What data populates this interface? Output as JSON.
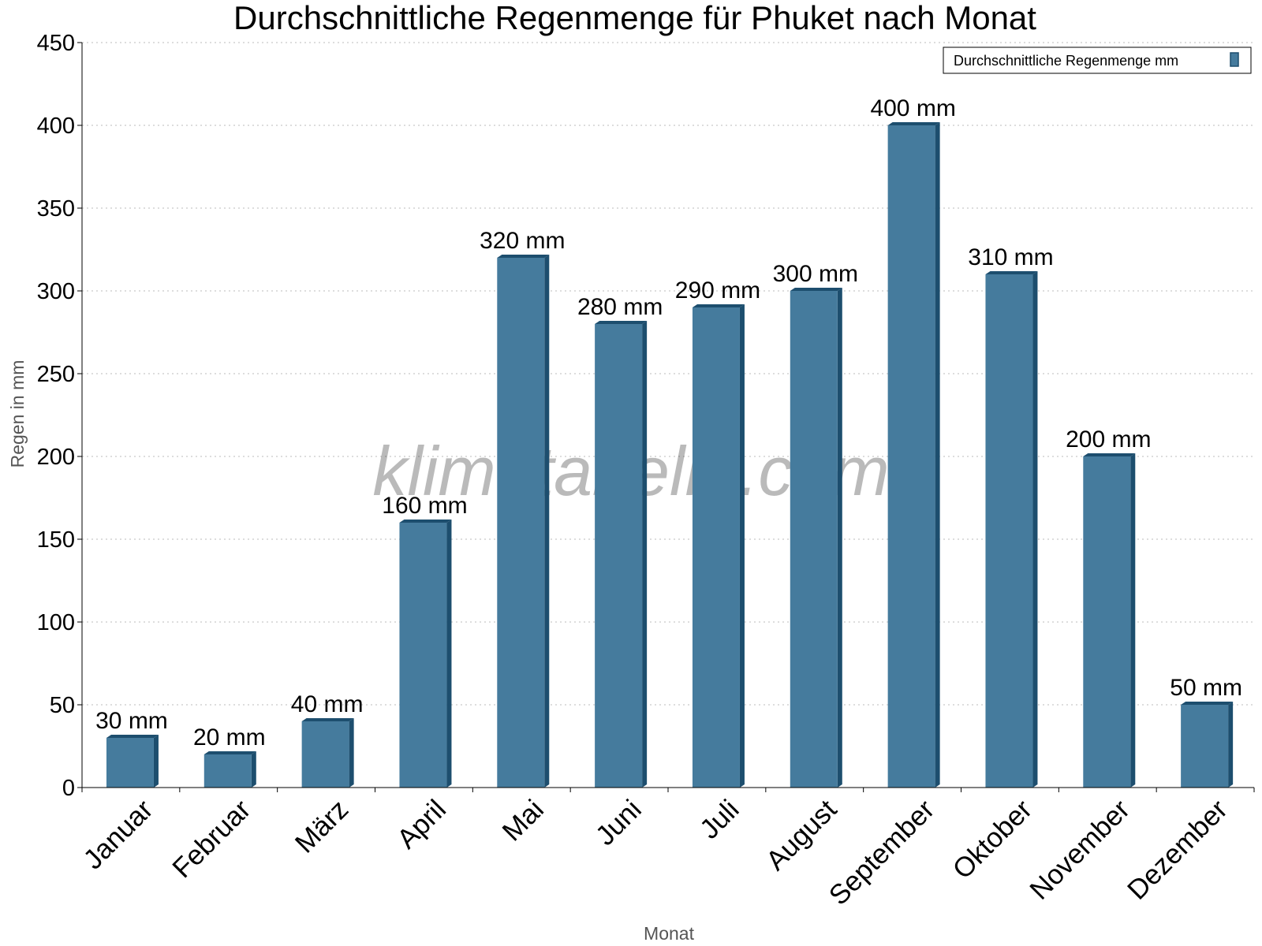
{
  "watermark": "klimatabelle.com",
  "chart_data": {
    "type": "bar",
    "title": "Durchschnittliche Regenmenge für Phuket nach Monat",
    "xlabel": "Monat",
    "ylabel": "Regen in mm",
    "ylim": [
      0,
      450
    ],
    "yticks": [
      0,
      50,
      100,
      150,
      200,
      250,
      300,
      350,
      400,
      450
    ],
    "grid": true,
    "legend_position": "top-right",
    "bar_color": "#457b9d",
    "bar_side_color": "#1d4e6e",
    "categories": [
      "Januar",
      "Februar",
      "März",
      "April",
      "Mai",
      "Juni",
      "Juli",
      "August",
      "September",
      "Oktober",
      "November",
      "Dezember"
    ],
    "series": [
      {
        "name": "Durchschnittliche Regenmenge mm",
        "values": [
          30,
          20,
          40,
          160,
          320,
          280,
          290,
          300,
          400,
          310,
          200,
          50
        ],
        "labels": [
          "30 mm",
          "20 mm",
          "40 mm",
          "160 mm",
          "320 mm",
          "280 mm",
          "290 mm",
          "300 mm",
          "400 mm",
          "310 mm",
          "200 mm",
          "50 mm"
        ]
      }
    ]
  }
}
